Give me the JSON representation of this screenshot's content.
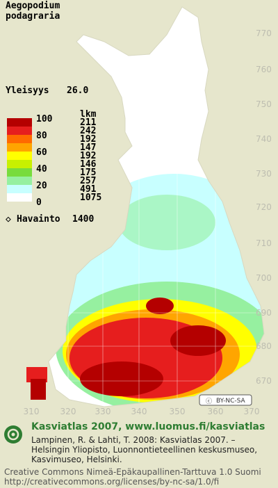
{
  "map": {
    "title_lines": [
      "Aegopodium",
      "podagraria"
    ],
    "frequency": {
      "label": "Yleisyys",
      "value": "26.0"
    },
    "legend": {
      "scale_labels": [
        100,
        80,
        60,
        40,
        20,
        0
      ],
      "count_header": "lkm",
      "counts": [
        211,
        242,
        192,
        147,
        192,
        146,
        175,
        257,
        491,
        1075
      ],
      "colors": [
        "#b40000",
        "#e61e1e",
        "#ff6a00",
        "#ffa500",
        "#ffff00",
        "#c8f000",
        "#78dc3c",
        "#96f0a0",
        "#c8ffff",
        "#ffffff"
      ]
    },
    "observations": {
      "label": "Havainto",
      "value": 1400
    },
    "northing_labels": [
      770,
      760,
      750,
      740,
      730,
      720,
      710,
      700,
      690,
      680,
      670
    ],
    "easting_labels": [
      310,
      320,
      330,
      340,
      350,
      360,
      370
    ],
    "license_badge": "BY-NC-SA"
  },
  "footer": {
    "headline": "Kasviatlas 2007, www.luomus.fi/kasviatlas",
    "citation_lines": [
      "Lampinen, R. & Lahti, T. 2008: Kasviatlas 2007. –",
      "Helsingin Yliopisto, Luonnontieteellinen keskusmuseo,",
      "Kasvimuseo, Helsinki."
    ],
    "license_lines": [
      "Creative Commons Nimeä-Epäkaupallinen-Tarttuva 1.0 Suomi",
      "http://creativecommons.org/licenses/by-nc-sa/1.0/fi"
    ]
  }
}
